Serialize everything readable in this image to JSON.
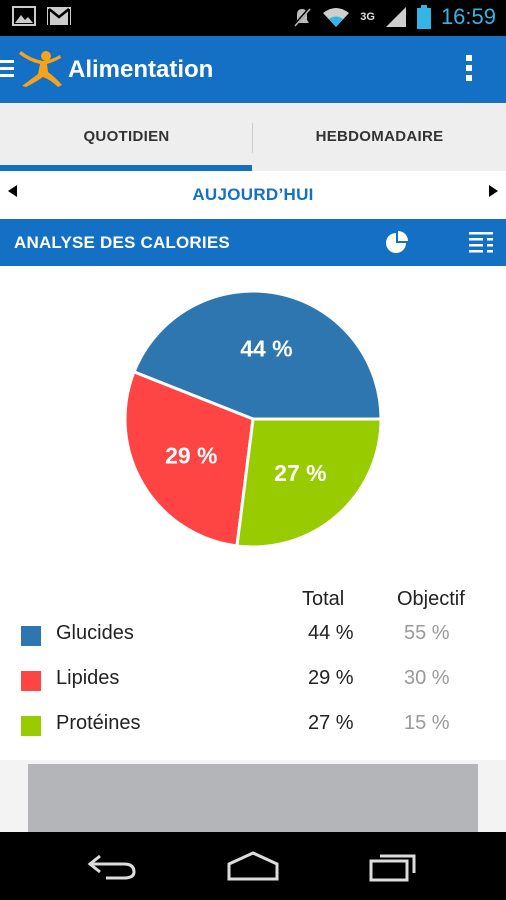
{
  "status_bar": {
    "time": "16:59",
    "network": "3G",
    "icons": [
      "image-icon",
      "gmail-icon",
      "mute-icon",
      "wifi-icon",
      "signal-icon",
      "battery-icon"
    ]
  },
  "action_bar": {
    "title": "Alimentation",
    "logo": "myfitnesspal-figure-logo",
    "color": "#1370c4"
  },
  "tabs": [
    {
      "label": "QUOTIDIEN",
      "active": true
    },
    {
      "label": "HEBDOMADAIRE",
      "active": false
    }
  ],
  "date_nav": {
    "label": "AUJOURD’HUI"
  },
  "section": {
    "title": "ANALYSE DES CALORIES"
  },
  "chart_data": {
    "type": "pie",
    "categories": [
      "Glucides",
      "Lipides",
      "Protéines"
    ],
    "values": [
      44,
      29,
      27
    ],
    "labels": [
      "44 %",
      "29 %",
      "27 %"
    ],
    "colors": [
      "#2e76b0",
      "#ff4444",
      "#99cc00"
    ]
  },
  "legend": {
    "headers": {
      "total": "Total",
      "goal": "Objectif"
    },
    "rows": [
      {
        "name": "Glucides",
        "total": "44 %",
        "goal": "55 %",
        "color": "#2e76b0"
      },
      {
        "name": "Lipides",
        "total": "29 %",
        "goal": "30 %",
        "color": "#ff4444"
      },
      {
        "name": "Protéines",
        "total": "27 %",
        "goal": "15 %",
        "color": "#99cc00"
      }
    ]
  },
  "nav_bar": {
    "icons": [
      "back-icon",
      "home-icon",
      "recents-icon"
    ]
  }
}
